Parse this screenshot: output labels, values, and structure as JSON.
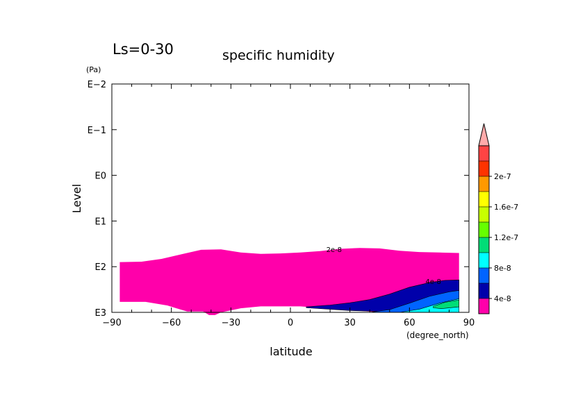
{
  "chart_data": {
    "type": "heatmap",
    "title": "specific humidity",
    "season_label": "Ls=0-30",
    "xlabel": "latitude",
    "x_unit": "(degree_north)",
    "ylabel": "Level",
    "y_unit": "(Pa)",
    "xlim": [
      -90,
      90
    ],
    "x_ticks": [
      -90,
      -60,
      -30,
      0,
      30,
      60,
      90
    ],
    "x_tick_labels": [
      "−90",
      "−60",
      "−30",
      "0",
      "30",
      "60",
      "90"
    ],
    "y_scale": "log",
    "y_range_log10": [
      -2,
      3
    ],
    "y_ticks_log10": [
      -2,
      -1,
      0,
      1,
      2,
      3
    ],
    "y_tick_labels": [
      "E−2",
      "E−1",
      "E0",
      "E1",
      "E2",
      "E3"
    ],
    "colorbar": {
      "colors": [
        "#ff00aa",
        "#0000aa",
        "#0064ff",
        "#00ffff",
        "#00dd77",
        "#66ff00",
        "#c8ff00",
        "#ffff00",
        "#ff9900",
        "#ff3300",
        "#ff4444",
        "#ffaaaa"
      ],
      "labels": [
        "4e-8",
        "8e-8",
        "1.2e-7",
        "1.6e-7",
        "2e-7"
      ],
      "extend": "max"
    },
    "contour_labels": [
      "2e-8",
      "4e-8"
    ],
    "filled_regions": [
      {
        "level": "2e-8 to 4e-8",
        "color": "#ff00aa",
        "top_boundary": [
          [
            -86,
            1.9
          ],
          [
            -75,
            1.89
          ],
          [
            -65,
            1.83
          ],
          [
            -55,
            1.73
          ],
          [
            -45,
            1.63
          ],
          [
            -35,
            1.62
          ],
          [
            -25,
            1.69
          ],
          [
            -15,
            1.72
          ],
          [
            -5,
            1.71
          ],
          [
            5,
            1.69
          ],
          [
            15,
            1.66
          ],
          [
            25,
            1.61
          ],
          [
            35,
            1.59
          ],
          [
            45,
            1.6
          ],
          [
            55,
            1.65
          ],
          [
            65,
            1.68
          ],
          [
            75,
            1.69
          ],
          [
            85,
            1.7
          ]
        ],
        "bottom_boundary": [
          [
            85,
            3.0
          ],
          [
            45,
            3.0
          ],
          [
            5,
            2.87
          ],
          [
            -15,
            2.87
          ],
          [
            -25,
            2.91
          ],
          [
            -35,
            3.0
          ],
          [
            -38,
            3.06
          ],
          [
            -41,
            3.06
          ],
          [
            -44,
            2.98
          ],
          [
            -52,
            2.98
          ],
          [
            -56,
            2.93
          ],
          [
            -62,
            2.85
          ],
          [
            -73,
            2.77
          ],
          [
            -86,
            2.77
          ]
        ]
      },
      {
        "level": "4e-8 to 8e-8",
        "color": "#0000aa",
        "top_boundary": [
          [
            8,
            2.88
          ],
          [
            20,
            2.84
          ],
          [
            30,
            2.79
          ],
          [
            40,
            2.72
          ],
          [
            50,
            2.6
          ],
          [
            60,
            2.45
          ],
          [
            70,
            2.35
          ],
          [
            78,
            2.3
          ],
          [
            85,
            2.29
          ]
        ],
        "bottom_boundary": [
          [
            85,
            3.0
          ],
          [
            50,
            3.0
          ],
          [
            45,
            2.98
          ],
          [
            30,
            2.96
          ],
          [
            8,
            2.9
          ]
        ]
      },
      {
        "level": "8e-8 to 1.2e-7",
        "color": "#0064ff",
        "top_boundary": [
          [
            40,
            3.0
          ],
          [
            50,
            2.94
          ],
          [
            60,
            2.8
          ],
          [
            70,
            2.65
          ],
          [
            80,
            2.55
          ],
          [
            85,
            2.52
          ]
        ],
        "bottom_boundary": [
          [
            85,
            3.0
          ],
          [
            40,
            3.0
          ]
        ]
      },
      {
        "level": "1.2e-7 to 1.6e-7",
        "color": "#00ffff",
        "top_boundary": [
          [
            55,
            3.0
          ],
          [
            65,
            2.93
          ],
          [
            75,
            2.8
          ],
          [
            85,
            2.7
          ]
        ],
        "bottom_boundary": [
          [
            85,
            3.0
          ],
          [
            55,
            3.0
          ]
        ]
      },
      {
        "level": "1.6e-7 to 2e-7",
        "color": "#00dd77",
        "top_boundary": [
          [
            72,
            2.87
          ],
          [
            78,
            2.78
          ],
          [
            85,
            2.73
          ]
        ],
        "bottom_boundary": [
          [
            85,
            2.88
          ],
          [
            76,
            2.92
          ],
          [
            72,
            2.9
          ]
        ]
      }
    ]
  }
}
